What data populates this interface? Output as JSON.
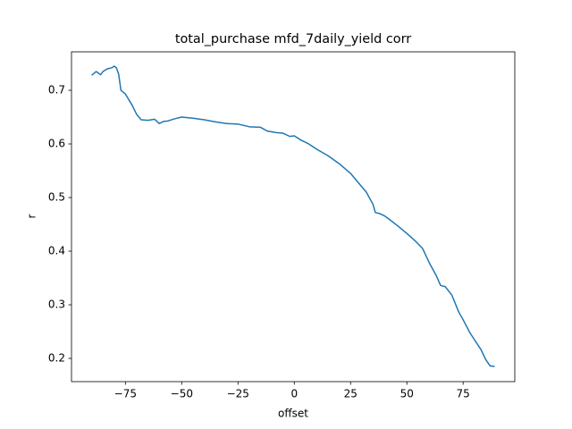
{
  "chart_data": {
    "type": "line",
    "title": "total_purchase mfd_7daily_yield corr",
    "x_label": "offset",
    "y_label": "r",
    "x": [
      -90,
      -88,
      -86,
      -85,
      -83,
      -81,
      -80,
      -79,
      -78,
      -77,
      -75,
      -72,
      -70,
      -68,
      -65,
      -62,
      -60,
      -58,
      -56,
      -53,
      -50,
      -45,
      -40,
      -35,
      -30,
      -25,
      -20,
      -15,
      -12,
      -8,
      -5,
      -2,
      0,
      3,
      6,
      10,
      15,
      20,
      25,
      28,
      32,
      35,
      36,
      38,
      40,
      42,
      46,
      50,
      54,
      57,
      60,
      63,
      65,
      67,
      70,
      73,
      75,
      78,
      80,
      83,
      85,
      87,
      89
    ],
    "series": [
      {
        "name": "r",
        "color": "#1f77b4",
        "values": [
          0.728,
          0.735,
          0.729,
          0.735,
          0.74,
          0.742,
          0.745,
          0.742,
          0.73,
          0.7,
          0.693,
          0.672,
          0.655,
          0.645,
          0.644,
          0.646,
          0.638,
          0.642,
          0.643,
          0.647,
          0.65,
          0.648,
          0.645,
          0.641,
          0.638,
          0.637,
          0.632,
          0.631,
          0.624,
          0.621,
          0.62,
          0.614,
          0.615,
          0.607,
          0.601,
          0.59,
          0.578,
          0.563,
          0.545,
          0.53,
          0.51,
          0.487,
          0.472,
          0.47,
          0.466,
          0.46,
          0.447,
          0.433,
          0.418,
          0.405,
          0.378,
          0.355,
          0.336,
          0.334,
          0.318,
          0.287,
          0.272,
          0.248,
          0.235,
          0.216,
          0.198,
          0.186,
          0.185
        ]
      }
    ],
    "xlim": [
      -98.95,
      97.95
    ],
    "ylim": [
      0.1567,
      0.7717
    ],
    "xticks": [
      {
        "value": -75,
        "label": "−75"
      },
      {
        "value": -50,
        "label": "−50"
      },
      {
        "value": -25,
        "label": "−25"
      },
      0,
      25,
      50,
      75
    ],
    "yticks": [
      0.2,
      0.3,
      0.4,
      0.5,
      0.6,
      0.7
    ]
  }
}
